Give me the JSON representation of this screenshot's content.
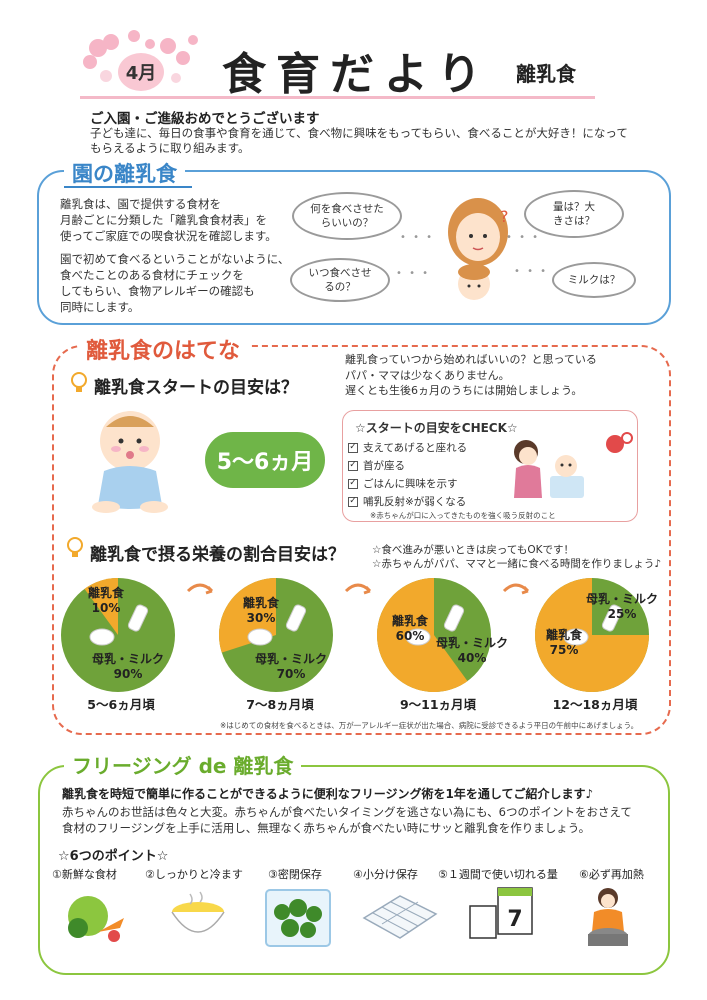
{
  "header": {
    "month": "4月",
    "title": "食育だより",
    "subtitle": "離乳食",
    "greeting_title": "ご入園・ご進級おめでとうございます",
    "greeting_body": "子ども達に、毎日の食事や食育を通じて、食べ物に興味をもってもらい、食べることが大好き！になってもらえるように取り組みます。"
  },
  "section1": {
    "title": "園の離乳食",
    "para1": [
      "離乳食は、園で提供する食材を",
      "月齢ごとに分類した「離乳食食材表」を",
      "使ってご家庭での喫食状況を確認します。"
    ],
    "para2": [
      "園で初めて食べるということがないように、",
      "食べたことのある食材にチェックを",
      "してもらい、食物アレルギーの確認も",
      "同時にします。"
    ],
    "clouds": [
      "何を食べさせたらいいの？",
      "いつ食べさせるの？",
      "量は？大きさは？",
      "ミルクは？"
    ]
  },
  "section2": {
    "title": "離乳食のはてな",
    "q1": "離乳食スタートの目安は？",
    "intro": [
      "離乳食っていつから始めればいいの？と思っている",
      "パパ・ママは少なくありません。",
      "遅くとも生後6ヵ月のうちには開始しましょう。"
    ],
    "start_age": "5〜6ヵ月",
    "check_title": "☆スタートの目安をCHECK☆",
    "check_items": [
      "支えてあげると座れる",
      "首が座る",
      "ごはんに興味を示す",
      "哺乳反射※が弱くなる"
    ],
    "check_note": "※赤ちゃんが口に入ってきたものを強く吸う反射のこと",
    "q2": "離乳食で摂る栄養の割合目安は？",
    "tips": [
      "☆食べ進みが悪いときは戻ってもOKです！",
      "☆赤ちゃんがパパ、ママと一緒に食べる時間を作りましょう♪"
    ],
    "footnote": "※はじめての食材を食べるときは、万が一アレルギー症状が出た場合、病院に受診できるよう平日の午前中にあげましょう。",
    "colors": {
      "baby_food": "#f2a92c",
      "milk": "#6fa23a"
    },
    "pies": [
      {
        "food_label": "離乳食",
        "food_pct": "10%",
        "milk_label": "母乳・ミルク",
        "milk_pct": "90%",
        "food_value": 10,
        "caption": "5〜6ヵ月頃"
      },
      {
        "food_label": "離乳食",
        "food_pct": "30%",
        "milk_label": "母乳・ミルク",
        "milk_pct": "70%",
        "food_value": 30,
        "caption": "7〜8ヵ月頃"
      },
      {
        "food_label": "離乳食",
        "food_pct": "60%",
        "milk_label": "母乳・ミルク",
        "milk_pct": "40%",
        "food_value": 60,
        "caption": "9〜11ヵ月頃"
      },
      {
        "food_label": "離乳食",
        "food_pct": "75%",
        "milk_label": "母乳・ミルク",
        "milk_pct": "25%",
        "food_value": 75,
        "caption": "12〜18ヵ月頃"
      }
    ]
  },
  "section3": {
    "title": "フリージング de 離乳食",
    "lead": "離乳食を時短で簡単に作ることができるように便利なフリージング術を1年を通してご紹介します♪",
    "body": [
      "赤ちゃんのお世話は色々と大変。赤ちゃんが食べたいタイミングを逃さない為にも、6つのポイントをおさえて",
      "食材のフリージングを上手に活用し、無理なく赤ちゃんが食べたい時にサッと離乳食を作りましょう。"
    ],
    "points_title": "☆6つのポイント☆",
    "points": [
      "①新鮮な食材",
      "②しっかりと冷ます",
      "③密閉保存",
      "④小分け保存",
      "⑤１週間で使い切れる量",
      "⑥必ず再加熱"
    ],
    "calendar_day": "7"
  }
}
